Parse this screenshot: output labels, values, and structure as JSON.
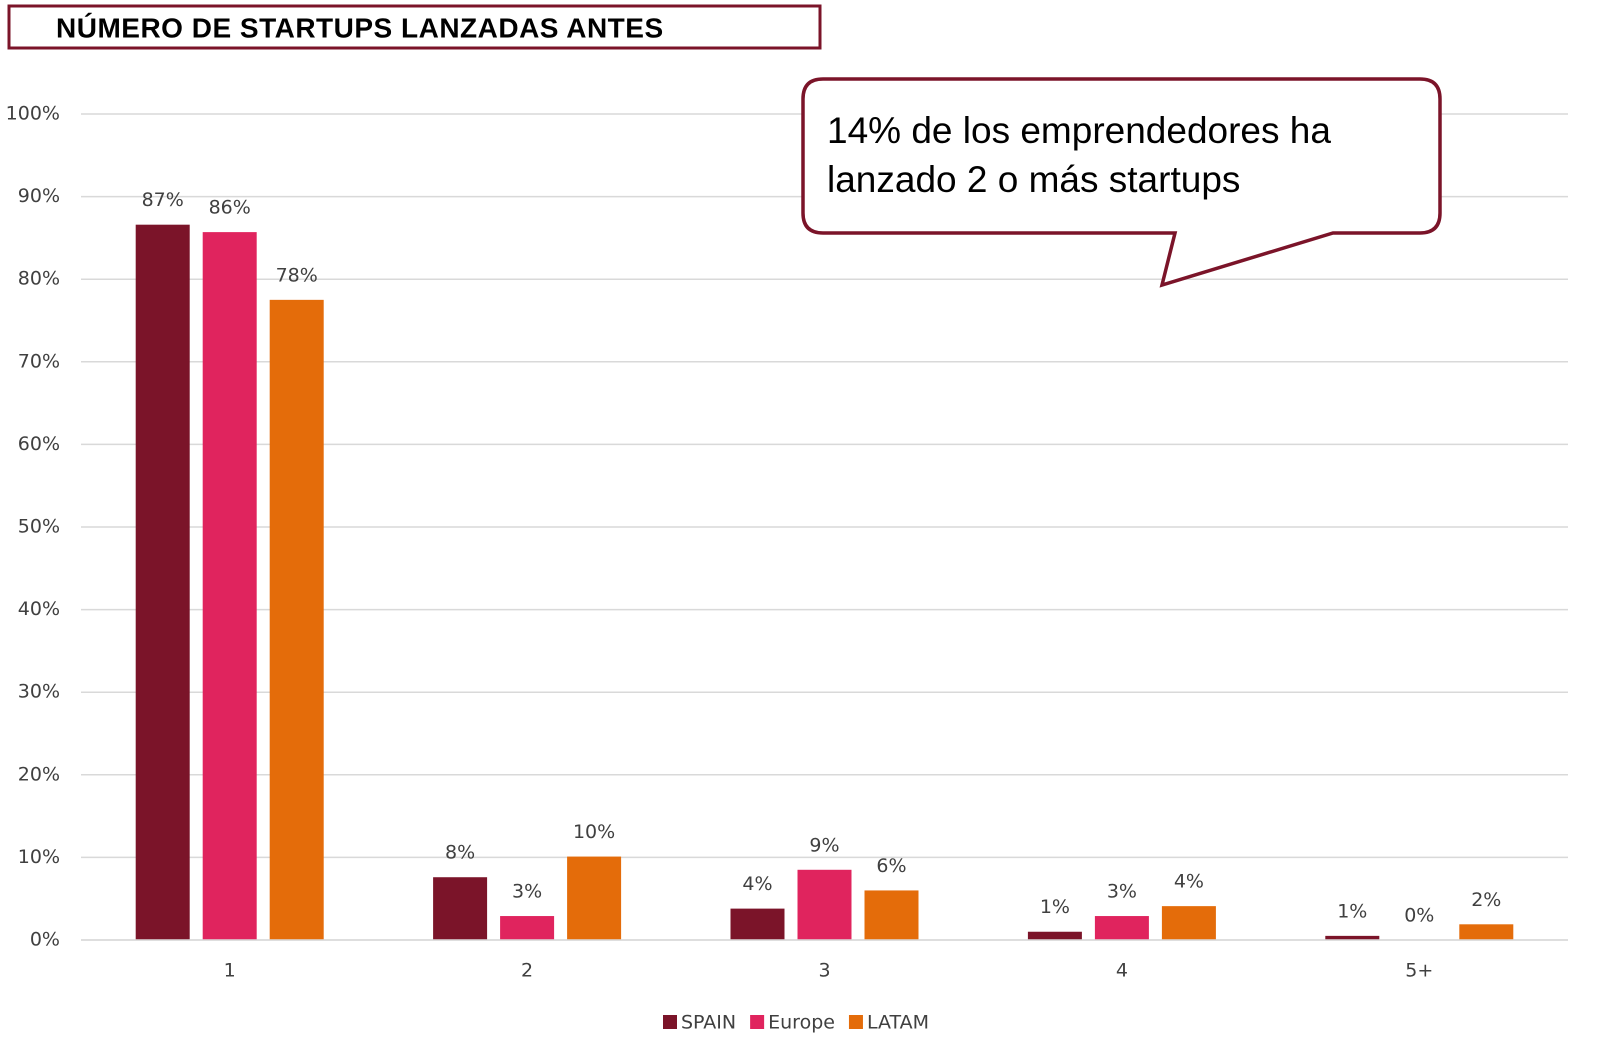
{
  "chart_data": {
    "type": "bar",
    "title": "NÚMERO DE STARTUPS LANZADAS ANTES",
    "annotation": [
      "14% de los emprendedores ha",
      "lanzado 2 o más startups"
    ],
    "categories": [
      "1",
      "2",
      "3",
      "4",
      "5+"
    ],
    "series": [
      {
        "name": "SPAIN",
        "color": "#7b1429",
        "values": [
          86.6,
          7.6,
          3.8,
          1.0,
          0.5
        ],
        "value_labels": [
          "87%",
          "8%",
          "4%",
          "1%",
          "1%"
        ]
      },
      {
        "name": "Europe",
        "color": "#e0245e",
        "values": [
          85.7,
          2.9,
          8.5,
          2.9,
          0
        ],
        "value_labels": [
          "86%",
          "3%",
          "9%",
          "3%",
          "0%"
        ]
      },
      {
        "name": "LATAM",
        "color": "#e46c0a",
        "values": [
          77.5,
          10.1,
          6.0,
          4.1,
          1.9
        ],
        "value_labels": [
          "78%",
          "10%",
          "6%",
          "4%",
          "2%"
        ]
      }
    ],
    "ylim": [
      0,
      100
    ],
    "yticks": [
      {
        "value": 0,
        "label": "0%"
      },
      {
        "value": 10,
        "label": "10%"
      },
      {
        "value": 20,
        "label": "20%"
      },
      {
        "value": 30,
        "label": "30%"
      },
      {
        "value": 40,
        "label": "40%"
      },
      {
        "value": 50,
        "label": "50%"
      },
      {
        "value": 60,
        "label": "60%"
      },
      {
        "value": 70,
        "label": "70%"
      },
      {
        "value": 80,
        "label": "80%"
      },
      {
        "value": 90,
        "label": "90%"
      },
      {
        "value": 100,
        "label": "100%"
      }
    ],
    "grid": true,
    "legend": "bottom"
  }
}
